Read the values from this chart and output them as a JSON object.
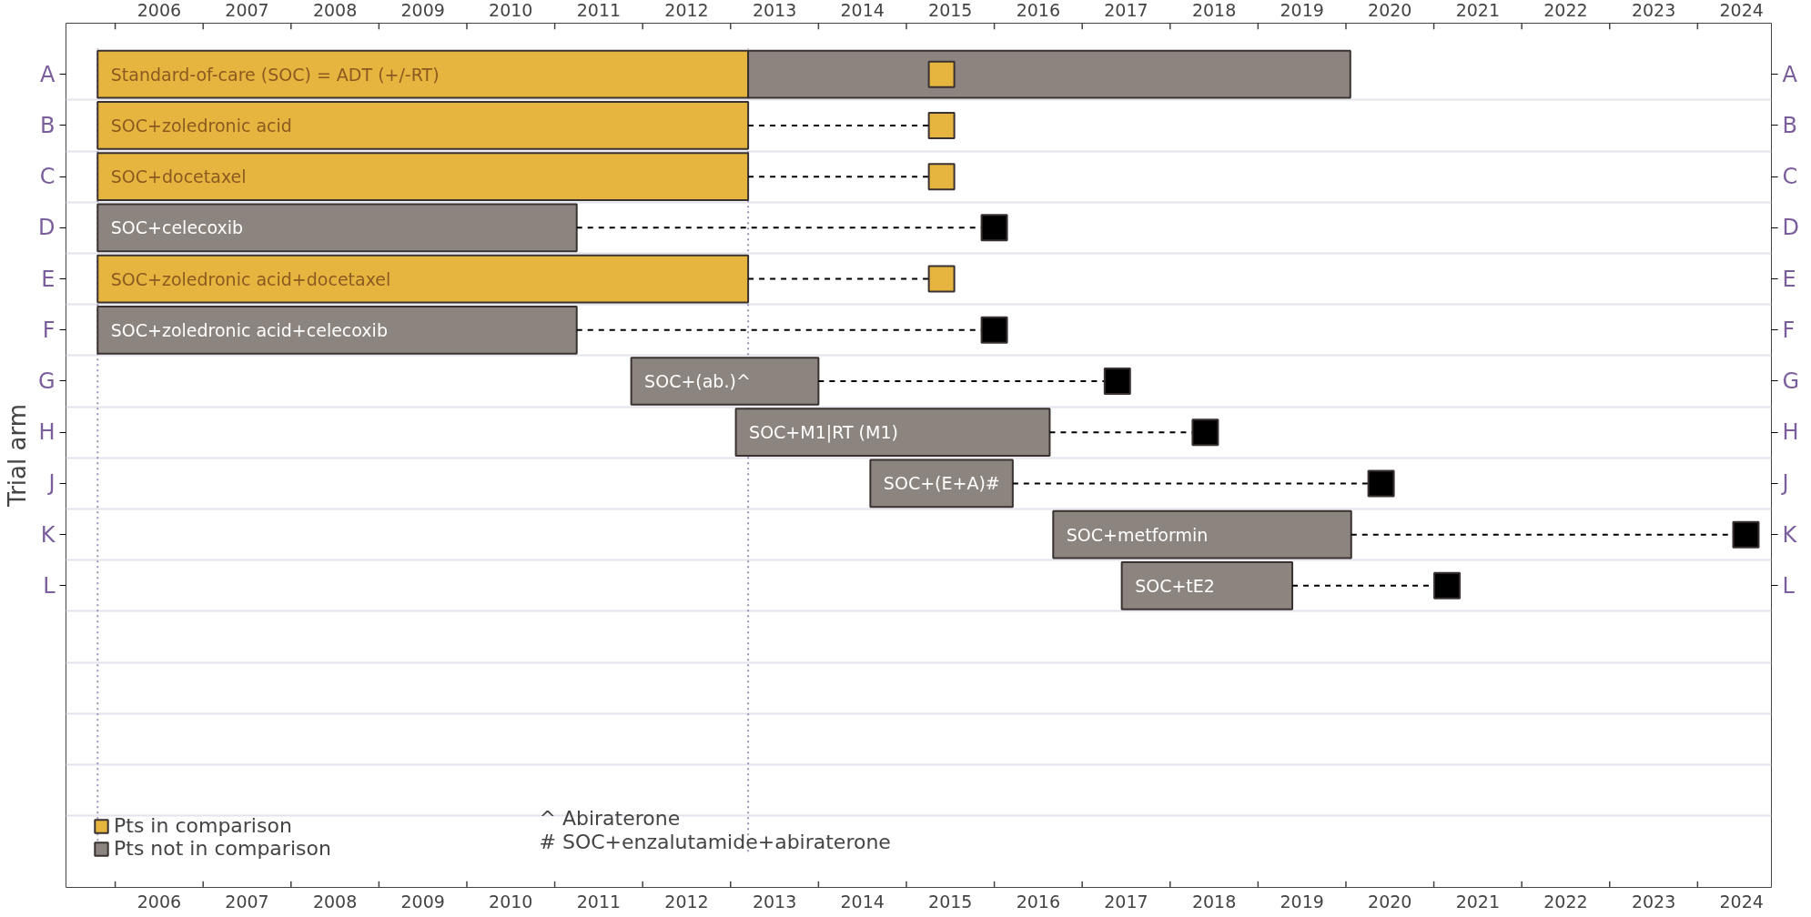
{
  "chart_data": {
    "type": "bar",
    "orientation": "horizontal",
    "ylabel": "Trial arm",
    "categories": [
      "A",
      "B",
      "C",
      "D",
      "E",
      "F",
      "G",
      "H",
      "J",
      "K",
      "L",
      null,
      null,
      null,
      null,
      null
    ],
    "y2_categories": [
      "A",
      "B",
      "C",
      "D",
      "E",
      "F",
      "G",
      "H",
      "J",
      "K",
      "L",
      null,
      null,
      null,
      null,
      null
    ],
    "series": [
      {
        "name": "Pts in comparison",
        "type": "bar",
        "color": "#e6b53f",
        "base": [
          2005.8,
          2005.8,
          2005.8,
          null,
          2005.8,
          null,
          null,
          null,
          null,
          null,
          null,
          null,
          null,
          null,
          null,
          null
        ],
        "values": [
          7.4,
          7.4,
          7.4,
          null,
          7.4,
          null,
          null,
          null,
          null,
          null,
          null,
          null,
          null,
          null,
          null,
          null
        ],
        "value_labels": [
          "Standard-of-care (SOC) = ADT (+/-RT)",
          "SOC+zoledronic acid",
          "SOC+docetaxel",
          null,
          "SOC+zoledronic acid+docetaxel",
          null,
          null,
          null,
          null,
          null,
          null,
          null,
          null,
          null,
          null,
          null
        ]
      },
      {
        "name": "Pts not in comparison",
        "type": "bar",
        "color": "#8c847f",
        "base": [
          2013.2,
          null,
          null,
          2005.8,
          null,
          2005.8,
          2011.87,
          2013.06,
          2014.59,
          2016.67,
          2017.45,
          null,
          null,
          null,
          null,
          null
        ],
        "values": [
          6.85,
          null,
          null,
          5.45,
          null,
          5.45,
          2.13,
          3.57,
          1.62,
          3.39,
          1.94,
          null,
          null,
          null,
          null,
          null
        ],
        "value_labels": [
          null,
          null,
          null,
          "SOC+celecoxib",
          null,
          "SOC+zoledronic acid+celecoxib",
          "SOC+(ab.)^",
          "SOC+M1|RT (M1)",
          "SOC+(E+A)#",
          "SOC+metformin",
          "SOC+tE2",
          null,
          null,
          null,
          null,
          null
        ]
      },
      {
        "type": "scatter",
        "marker": "square",
        "colors": [
          "#e6b53f",
          "#e6b53f",
          "#e6b53f",
          "#000000",
          "#e6b53f",
          "#000000",
          "#000000",
          "#000000",
          "#000000",
          "#000000",
          "#000000",
          null,
          null,
          null,
          null,
          null
        ],
        "values": [
          2015.4,
          2015.4,
          2015.4,
          2016.0,
          2015.4,
          2016.0,
          2017.4,
          2018.4,
          2020.4,
          2024.55,
          2021.15,
          null,
          null,
          null,
          null,
          null
        ],
        "errors": [
          null,
          [
            2013.2,
            2015.4
          ],
          [
            2013.2,
            2015.4
          ],
          [
            2011.25,
            2016.0
          ],
          [
            2013.2,
            2015.4
          ],
          [
            2011.25,
            2016.0
          ],
          [
            2014.0,
            2017.4
          ],
          [
            2016.63,
            2018.4
          ],
          [
            2016.21,
            2020.4
          ],
          [
            2020.06,
            2024.55
          ],
          [
            2019.39,
            2021.15
          ],
          null,
          null,
          null,
          null,
          null
        ]
      }
    ],
    "xlim": [
      2005.44,
      2024.84
    ],
    "xticks": [
      {
        "value": 2006,
        "label": null
      },
      {
        "value": 2006.5,
        "label": "2006"
      },
      {
        "value": 2007,
        "label": null
      },
      {
        "value": 2007.5,
        "label": "2007"
      },
      {
        "value": 2008,
        "label": null
      },
      {
        "value": 2008.5,
        "label": "2008"
      },
      {
        "value": 2009,
        "label": null
      },
      {
        "value": 2009.5,
        "label": "2009"
      },
      {
        "value": 2010,
        "label": null
      },
      {
        "value": 2010.5,
        "label": "2010"
      },
      {
        "value": 2011,
        "label": null
      },
      {
        "value": 2011.5,
        "label": "2011"
      },
      {
        "value": 2012,
        "label": null
      },
      {
        "value": 2012.5,
        "label": "2012"
      },
      {
        "value": 2013,
        "label": null
      },
      {
        "value": 2013.5,
        "label": "2013"
      },
      {
        "value": 2014,
        "label": null
      },
      {
        "value": 2014.5,
        "label": "2014"
      },
      {
        "value": 2015,
        "label": null
      },
      {
        "value": 2015.5,
        "label": "2015"
      },
      {
        "value": 2016,
        "label": null
      },
      {
        "value": 2016.5,
        "label": "2016"
      },
      {
        "value": 2017,
        "label": null
      },
      {
        "value": 2017.5,
        "label": "2017"
      },
      {
        "value": 2018,
        "label": null
      },
      {
        "value": 2018.5,
        "label": "2018"
      },
      {
        "value": 2019,
        "label": null
      },
      {
        "value": 2019.5,
        "label": "2019"
      },
      {
        "value": 2020,
        "label": null
      },
      {
        "value": 2020.5,
        "label": "2020"
      },
      {
        "value": 2021,
        "label": null
      },
      {
        "value": 2021.5,
        "label": "2021"
      },
      {
        "value": 2022,
        "label": null
      },
      {
        "value": 2022.5,
        "label": "2022"
      },
      {
        "value": 2023,
        "label": null
      },
      {
        "value": 2023.5,
        "label": "2023"
      },
      {
        "value": 2024,
        "label": null
      },
      {
        "value": 2024.5,
        "label": "2024"
      }
    ],
    "x2lim": [
      2005.44,
      2024.84
    ],
    "x2ticks": [
      {
        "value": 2006,
        "label": null
      },
      {
        "value": 2006.5,
        "label": "2006"
      },
      {
        "value": 2007,
        "label": null
      },
      {
        "value": 2007.5,
        "label": "2007"
      },
      {
        "value": 2008,
        "label": null
      },
      {
        "value": 2008.5,
        "label": "2008"
      },
      {
        "value": 2009,
        "label": null
      },
      {
        "value": 2009.5,
        "label": "2009"
      },
      {
        "value": 2010,
        "label": null
      },
      {
        "value": 2010.5,
        "label": "2010"
      },
      {
        "value": 2011,
        "label": null
      },
      {
        "value": 2011.5,
        "label": "2011"
      },
      {
        "value": 2012,
        "label": null
      },
      {
        "value": 2012.5,
        "label": "2012"
      },
      {
        "value": 2013,
        "label": null
      },
      {
        "value": 2013.5,
        "label": "2013"
      },
      {
        "value": 2014,
        "label": null
      },
      {
        "value": 2014.5,
        "label": "2014"
      },
      {
        "value": 2015,
        "label": null
      },
      {
        "value": 2015.5,
        "label": "2015"
      },
      {
        "value": 2016,
        "label": null
      },
      {
        "value": 2016.5,
        "label": "2016"
      },
      {
        "value": 2017,
        "label": null
      },
      {
        "value": 2017.5,
        "label": "2017"
      },
      {
        "value": 2018,
        "label": null
      },
      {
        "value": 2018.5,
        "label": "2018"
      },
      {
        "value": 2019,
        "label": null
      },
      {
        "value": 2019.5,
        "label": "2019"
      },
      {
        "value": 2020,
        "label": null
      },
      {
        "value": 2020.5,
        "label": "2020"
      },
      {
        "value": 2021,
        "label": null
      },
      {
        "value": 2021.5,
        "label": "2021"
      },
      {
        "value": 2022,
        "label": null
      },
      {
        "value": 2022.5,
        "label": "2022"
      },
      {
        "value": 2023,
        "label": null
      },
      {
        "value": 2023.5,
        "label": "2023"
      },
      {
        "value": 2024,
        "label": null
      },
      {
        "value": 2024.5,
        "label": "2024"
      }
    ],
    "ref_lines": [
      {
        "axis": "x",
        "value": 2005.8,
        "color": "#9a90b8",
        "line_style": "dotted"
      },
      {
        "axis": "x",
        "value": 2013.2,
        "color": "#9a90b8",
        "line_style": "dotted"
      }
    ],
    "annotations": [
      "^ Abiraterone",
      "# SOC+enzalutamide+abiraterone"
    ],
    "grid": "y",
    "legend": "bottom left"
  }
}
